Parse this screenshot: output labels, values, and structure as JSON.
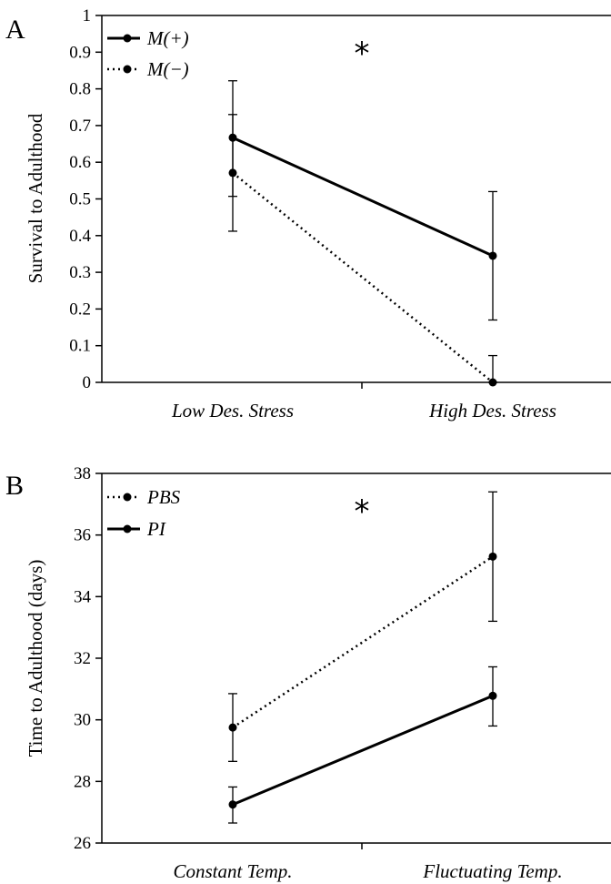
{
  "chart_data": [
    {
      "type": "line",
      "panel": "A",
      "ylabel": "Survival to Adulthood",
      "xlabel": "",
      "ylim": [
        0,
        1
      ],
      "yticks": [
        "0",
        "0.1",
        "0.2",
        "0.3",
        "0.4",
        "0.5",
        "0.6",
        "0.7",
        "0.8",
        "0.9",
        "1"
      ],
      "categories": [
        "Low Des. Stress",
        "High Des. Stress"
      ],
      "significance": "*",
      "legend_position": "top-left",
      "series": [
        {
          "name": "M(+)",
          "style": "solid",
          "values": [
            0.667,
            0.345
          ],
          "err_low": [
            0.507,
            0.17
          ],
          "err_high": [
            0.822,
            0.52
          ]
        },
        {
          "name": "M(−)",
          "style": "dotted",
          "values": [
            0.571,
            0.0
          ],
          "err_low": [
            0.412,
            0.0
          ],
          "err_high": [
            0.73,
            0.073
          ]
        }
      ]
    },
    {
      "type": "line",
      "panel": "B",
      "ylabel": "Time to Adulthood (days)",
      "xlabel": "",
      "ylim": [
        26,
        38
      ],
      "yticks": [
        "26",
        "28",
        "30",
        "32",
        "34",
        "36",
        "38"
      ],
      "categories": [
        "Constant Temp.",
        "Fluctuating Temp."
      ],
      "significance": "*",
      "legend_position": "top-left",
      "series": [
        {
          "name": "PBS",
          "style": "dotted",
          "values": [
            29.75,
            35.3
          ],
          "err_low": [
            28.65,
            33.2
          ],
          "err_high": [
            30.85,
            37.4
          ]
        },
        {
          "name": "PI",
          "style": "solid",
          "values": [
            27.25,
            30.78
          ],
          "err_low": [
            26.65,
            29.8
          ],
          "err_high": [
            27.82,
            31.72
          ]
        }
      ]
    }
  ]
}
